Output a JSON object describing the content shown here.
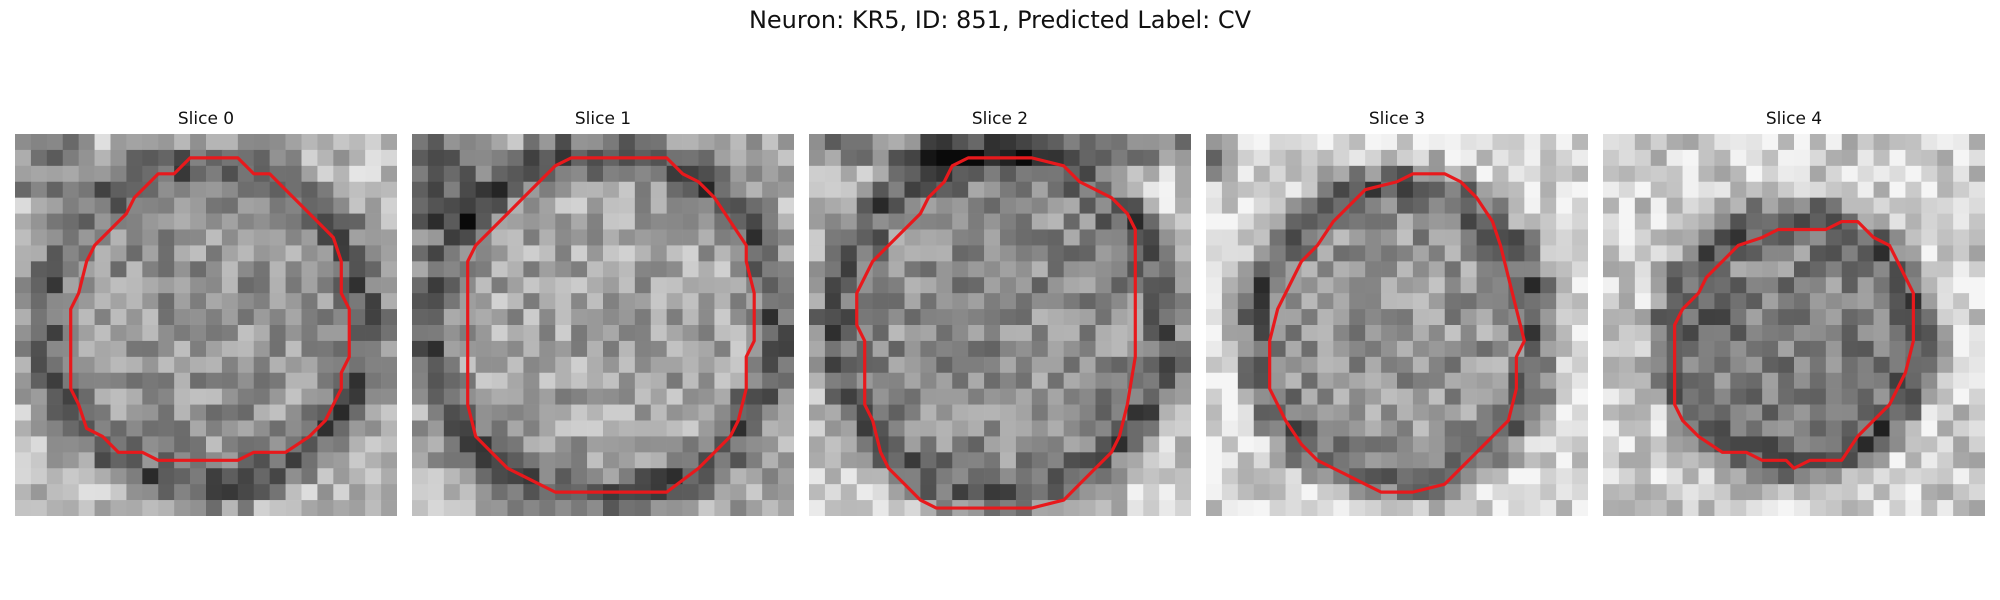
{
  "figure": {
    "title": "Neuron: KR5, ID: 851, Predicted Label: CV"
  },
  "colors": {
    "contour": "#e8191c",
    "background": "#ffffff"
  },
  "image_style": "grayscale EM micrograph tiles, 24x24 pixel grid, dark membrane ring around lighter interior",
  "panels": [
    {
      "title": "Slice 0",
      "contour_points": [
        [
          11,
          1.5
        ],
        [
          14,
          1.5
        ],
        [
          15,
          2.5
        ],
        [
          16,
          2.5
        ],
        [
          17,
          3.5
        ],
        [
          18,
          4.5
        ],
        [
          19,
          5.5
        ],
        [
          20,
          6.5
        ],
        [
          20.5,
          8
        ],
        [
          20.5,
          10
        ],
        [
          21,
          11
        ],
        [
          21,
          14
        ],
        [
          20.5,
          15
        ],
        [
          20.5,
          16
        ],
        [
          20,
          17
        ],
        [
          19.5,
          18
        ],
        [
          18.5,
          19
        ],
        [
          17,
          20
        ],
        [
          15,
          20
        ],
        [
          14,
          20.5
        ],
        [
          9,
          20.5
        ],
        [
          8,
          20
        ],
        [
          6.5,
          20
        ],
        [
          5.5,
          19
        ],
        [
          4.5,
          18.5
        ],
        [
          4,
          17
        ],
        [
          3.5,
          16
        ],
        [
          3.5,
          13
        ],
        [
          3.5,
          11
        ],
        [
          4,
          10
        ],
        [
          4.5,
          8
        ],
        [
          5,
          7
        ],
        [
          6,
          6
        ],
        [
          7,
          5
        ],
        [
          7.5,
          4
        ],
        [
          8.5,
          3
        ],
        [
          9,
          2.5
        ],
        [
          10,
          2.5
        ]
      ],
      "pattern": "ring-dark-edge"
    },
    {
      "title": "Slice 1",
      "contour_points": [
        [
          10,
          1.5
        ],
        [
          16,
          1.5
        ],
        [
          17,
          2.5
        ],
        [
          18,
          3
        ],
        [
          19,
          4
        ],
        [
          20,
          5.5
        ],
        [
          21,
          7
        ],
        [
          21,
          8
        ],
        [
          21.5,
          10
        ],
        [
          21.5,
          13
        ],
        [
          21,
          14
        ],
        [
          21,
          16
        ],
        [
          20.5,
          18
        ],
        [
          20,
          19
        ],
        [
          19,
          20
        ],
        [
          18,
          21
        ],
        [
          16,
          22.5
        ],
        [
          9,
          22.5
        ],
        [
          8,
          22
        ],
        [
          7,
          21.5
        ],
        [
          6,
          21
        ],
        [
          5,
          20
        ],
        [
          4,
          19
        ],
        [
          3.5,
          17
        ],
        [
          3.5,
          16
        ],
        [
          3.5,
          12
        ],
        [
          3.5,
          8
        ],
        [
          4,
          7
        ],
        [
          5,
          6
        ],
        [
          6,
          5
        ],
        [
          7,
          4
        ],
        [
          8,
          3
        ],
        [
          9,
          2
        ]
      ],
      "pattern": "ring-dark-edge-tl"
    },
    {
      "title": "Slice 2",
      "contour_points": [
        [
          10,
          1.5
        ],
        [
          14,
          1.5
        ],
        [
          16,
          2
        ],
        [
          17,
          3
        ],
        [
          18,
          3.5
        ],
        [
          19,
          4
        ],
        [
          20,
          5
        ],
        [
          20.5,
          6
        ],
        [
          20.5,
          10
        ],
        [
          20.5,
          14
        ],
        [
          20,
          17
        ],
        [
          19.5,
          19
        ],
        [
          19,
          20
        ],
        [
          18,
          21
        ],
        [
          17,
          22
        ],
        [
          16,
          23
        ],
        [
          14,
          23.5
        ],
        [
          8,
          23.5
        ],
        [
          7,
          23
        ],
        [
          6,
          22
        ],
        [
          5,
          21
        ],
        [
          4.5,
          20
        ],
        [
          4,
          18
        ],
        [
          3.5,
          17
        ],
        [
          3.5,
          13
        ],
        [
          3,
          12
        ],
        [
          3,
          10
        ],
        [
          3.5,
          9
        ],
        [
          4,
          8
        ],
        [
          5,
          7
        ],
        [
          6,
          6
        ],
        [
          7,
          5
        ],
        [
          7.5,
          4
        ],
        [
          8.5,
          3
        ],
        [
          9,
          2
        ]
      ],
      "pattern": "ring-dark-edge-bottom"
    },
    {
      "title": "Slice 3",
      "contour_points": [
        [
          10,
          3.5
        ],
        [
          12,
          3
        ],
        [
          13,
          2.5
        ],
        [
          15,
          2.5
        ],
        [
          16,
          3
        ],
        [
          17,
          4
        ],
        [
          18,
          5.5
        ],
        [
          18.5,
          7
        ],
        [
          19,
          9
        ],
        [
          19.5,
          11
        ],
        [
          20,
          13
        ],
        [
          19.5,
          14
        ],
        [
          19.5,
          16
        ],
        [
          19,
          18
        ],
        [
          18,
          19
        ],
        [
          17,
          20
        ],
        [
          16,
          21
        ],
        [
          15,
          22
        ],
        [
          13,
          22.5
        ],
        [
          11,
          22.5
        ],
        [
          10,
          22
        ],
        [
          9,
          21.5
        ],
        [
          8,
          21
        ],
        [
          7,
          20.5
        ],
        [
          6,
          19.5
        ],
        [
          5,
          18
        ],
        [
          4.5,
          17
        ],
        [
          4,
          16
        ],
        [
          4,
          13
        ],
        [
          4.5,
          11
        ],
        [
          5,
          10
        ],
        [
          5.5,
          9
        ],
        [
          6,
          8
        ],
        [
          7,
          7
        ],
        [
          8,
          5.5
        ],
        [
          9,
          4.5
        ]
      ],
      "pattern": "ring-light-outside"
    },
    {
      "title": "Slice 4",
      "contour_points": [
        [
          13,
          6
        ],
        [
          14,
          6
        ],
        [
          15,
          5.5
        ],
        [
          16,
          5.5
        ],
        [
          17,
          6.5
        ],
        [
          18,
          7
        ],
        [
          18.5,
          8
        ],
        [
          19,
          9
        ],
        [
          19.5,
          10
        ],
        [
          19.5,
          13
        ],
        [
          19,
          15
        ],
        [
          18.5,
          16
        ],
        [
          18,
          17
        ],
        [
          17,
          18
        ],
        [
          16,
          19
        ],
        [
          15,
          20.5
        ],
        [
          13,
          20.5
        ],
        [
          12,
          21
        ],
        [
          11.5,
          20.5
        ],
        [
          10,
          20.5
        ],
        [
          9,
          20
        ],
        [
          7.5,
          20
        ],
        [
          6,
          19
        ],
        [
          5,
          18
        ],
        [
          4.5,
          17
        ],
        [
          4.5,
          14
        ],
        [
          4.5,
          12
        ],
        [
          5,
          11
        ],
        [
          6,
          10
        ],
        [
          6.5,
          9
        ],
        [
          7.5,
          8
        ],
        [
          8.5,
          7
        ],
        [
          10,
          6.5
        ],
        [
          11,
          6
        ],
        [
          12,
          6
        ]
      ],
      "pattern": "ring-small-dark"
    }
  ]
}
